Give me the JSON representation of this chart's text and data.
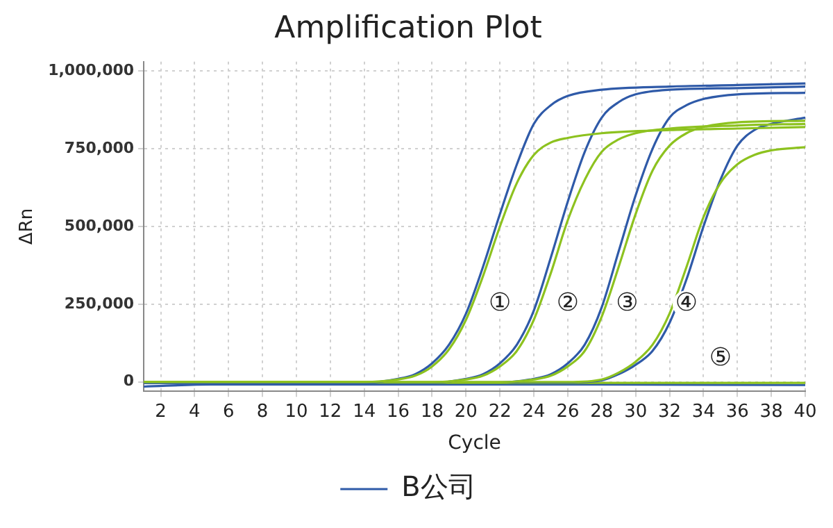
{
  "chart_data": {
    "type": "line",
    "title": "Amplification Plot",
    "xlabel": "Cycle",
    "ylabel": "ΔRn",
    "xlim": [
      1,
      40
    ],
    "xticks": [
      2,
      4,
      6,
      8,
      10,
      12,
      14,
      16,
      18,
      20,
      22,
      24,
      26,
      28,
      30,
      32,
      34,
      36,
      38,
      40
    ],
    "ylim": [
      -30000,
      1030000
    ],
    "yticks": [
      {
        "value": 0,
        "label": "0"
      },
      {
        "value": 250000,
        "label": "250,000"
      },
      {
        "value": 500000,
        "label": "500,000"
      },
      {
        "value": 750000,
        "label": "750,000"
      },
      {
        "value": 1000000,
        "label": "1,000,000"
      }
    ],
    "grid": true,
    "legend": "bottom",
    "marker": "none",
    "line_style": "solid",
    "series": [
      {
        "color": "#8dc21f",
        "x": [
          1,
          14,
          16,
          17,
          18,
          19,
          20,
          21,
          22,
          23,
          24,
          25,
          26,
          28,
          32,
          36,
          40
        ],
        "values": [
          -400,
          -400,
          8000,
          20000,
          50000,
          105000,
          200000,
          340000,
          500000,
          640000,
          730000,
          770000,
          785000,
          800000,
          810000,
          815000,
          820000
        ]
      },
      {
        "name": "B公司",
        "color": "#2f5aa8",
        "x": [
          1,
          14,
          16,
          17,
          18,
          19,
          20,
          21,
          22,
          23,
          24,
          25,
          26,
          28,
          32,
          36,
          40
        ],
        "values": [
          -2800,
          -2800,
          10000,
          25000,
          60000,
          120000,
          220000,
          370000,
          540000,
          700000,
          830000,
          890000,
          920000,
          940000,
          950000,
          955000,
          960000
        ]
      },
      {
        "color": "#8dc21f",
        "x": [
          1,
          18,
          20,
          21,
          22,
          23,
          24,
          25,
          26,
          27,
          28,
          29,
          30,
          32,
          36,
          40
        ],
        "values": [
          -800,
          -800,
          8000,
          20000,
          50000,
          100000,
          200000,
          350000,
          520000,
          650000,
          740000,
          780000,
          800000,
          815000,
          825000,
          830000
        ]
      },
      {
        "color": "#2f5aa8",
        "x": [
          1,
          18,
          20,
          21,
          22,
          23,
          24,
          25,
          26,
          27,
          28,
          29,
          30,
          32,
          36,
          40
        ],
        "values": [
          -2400,
          -2400,
          10000,
          25000,
          60000,
          120000,
          230000,
          400000,
          580000,
          740000,
          850000,
          900000,
          925000,
          940000,
          945000,
          950000
        ]
      },
      {
        "color": "#8dc21f",
        "x": [
          1,
          22,
          24,
          25,
          26,
          27,
          28,
          29,
          30,
          31,
          32,
          33,
          34,
          36,
          40
        ],
        "values": [
          -1200,
          -1200,
          8000,
          20000,
          50000,
          100000,
          210000,
          370000,
          540000,
          680000,
          760000,
          800000,
          820000,
          835000,
          840000
        ]
      },
      {
        "color": "#2f5aa8",
        "x": [
          1,
          22,
          24,
          25,
          26,
          27,
          28,
          29,
          30,
          31,
          32,
          33,
          34,
          36,
          40
        ],
        "values": [
          -2000,
          -2000,
          10000,
          25000,
          60000,
          120000,
          240000,
          420000,
          600000,
          750000,
          850000,
          890000,
          910000,
          925000,
          930000
        ]
      },
      {
        "color": "#8dc21f",
        "x": [
          1,
          26,
          28,
          29,
          30,
          31,
          32,
          33,
          34,
          35,
          36,
          37,
          38,
          40
        ],
        "values": [
          0,
          0,
          8000,
          30000,
          65000,
          120000,
          220000,
          370000,
          530000,
          640000,
          700000,
          730000,
          745000,
          755000
        ]
      },
      {
        "color": "#2f5aa8",
        "x": [
          1,
          26,
          28,
          29,
          30,
          31,
          32,
          33,
          34,
          35,
          36,
          37,
          38,
          40
        ],
        "values": [
          -1600,
          -1600,
          5000,
          25000,
          55000,
          100000,
          190000,
          330000,
          500000,
          650000,
          760000,
          810000,
          830000,
          850000
        ]
      },
      {
        "color": "#8dc21f",
        "x": [
          1,
          40
        ],
        "values": [
          -3000,
          -3000
        ]
      },
      {
        "color": "#2f5aa8",
        "x": [
          1,
          5,
          15,
          25,
          40
        ],
        "values": [
          -15000,
          -8000,
          -8000,
          -8000,
          -10000
        ]
      }
    ],
    "annotations": [
      {
        "text": "①",
        "x": 22,
        "y": 250000
      },
      {
        "text": "②",
        "x": 26,
        "y": 250000
      },
      {
        "text": "③",
        "x": 29.5,
        "y": 250000
      },
      {
        "text": "④",
        "x": 33,
        "y": 250000
      },
      {
        "text": "⑤",
        "x": 35,
        "y": 75000
      }
    ]
  }
}
